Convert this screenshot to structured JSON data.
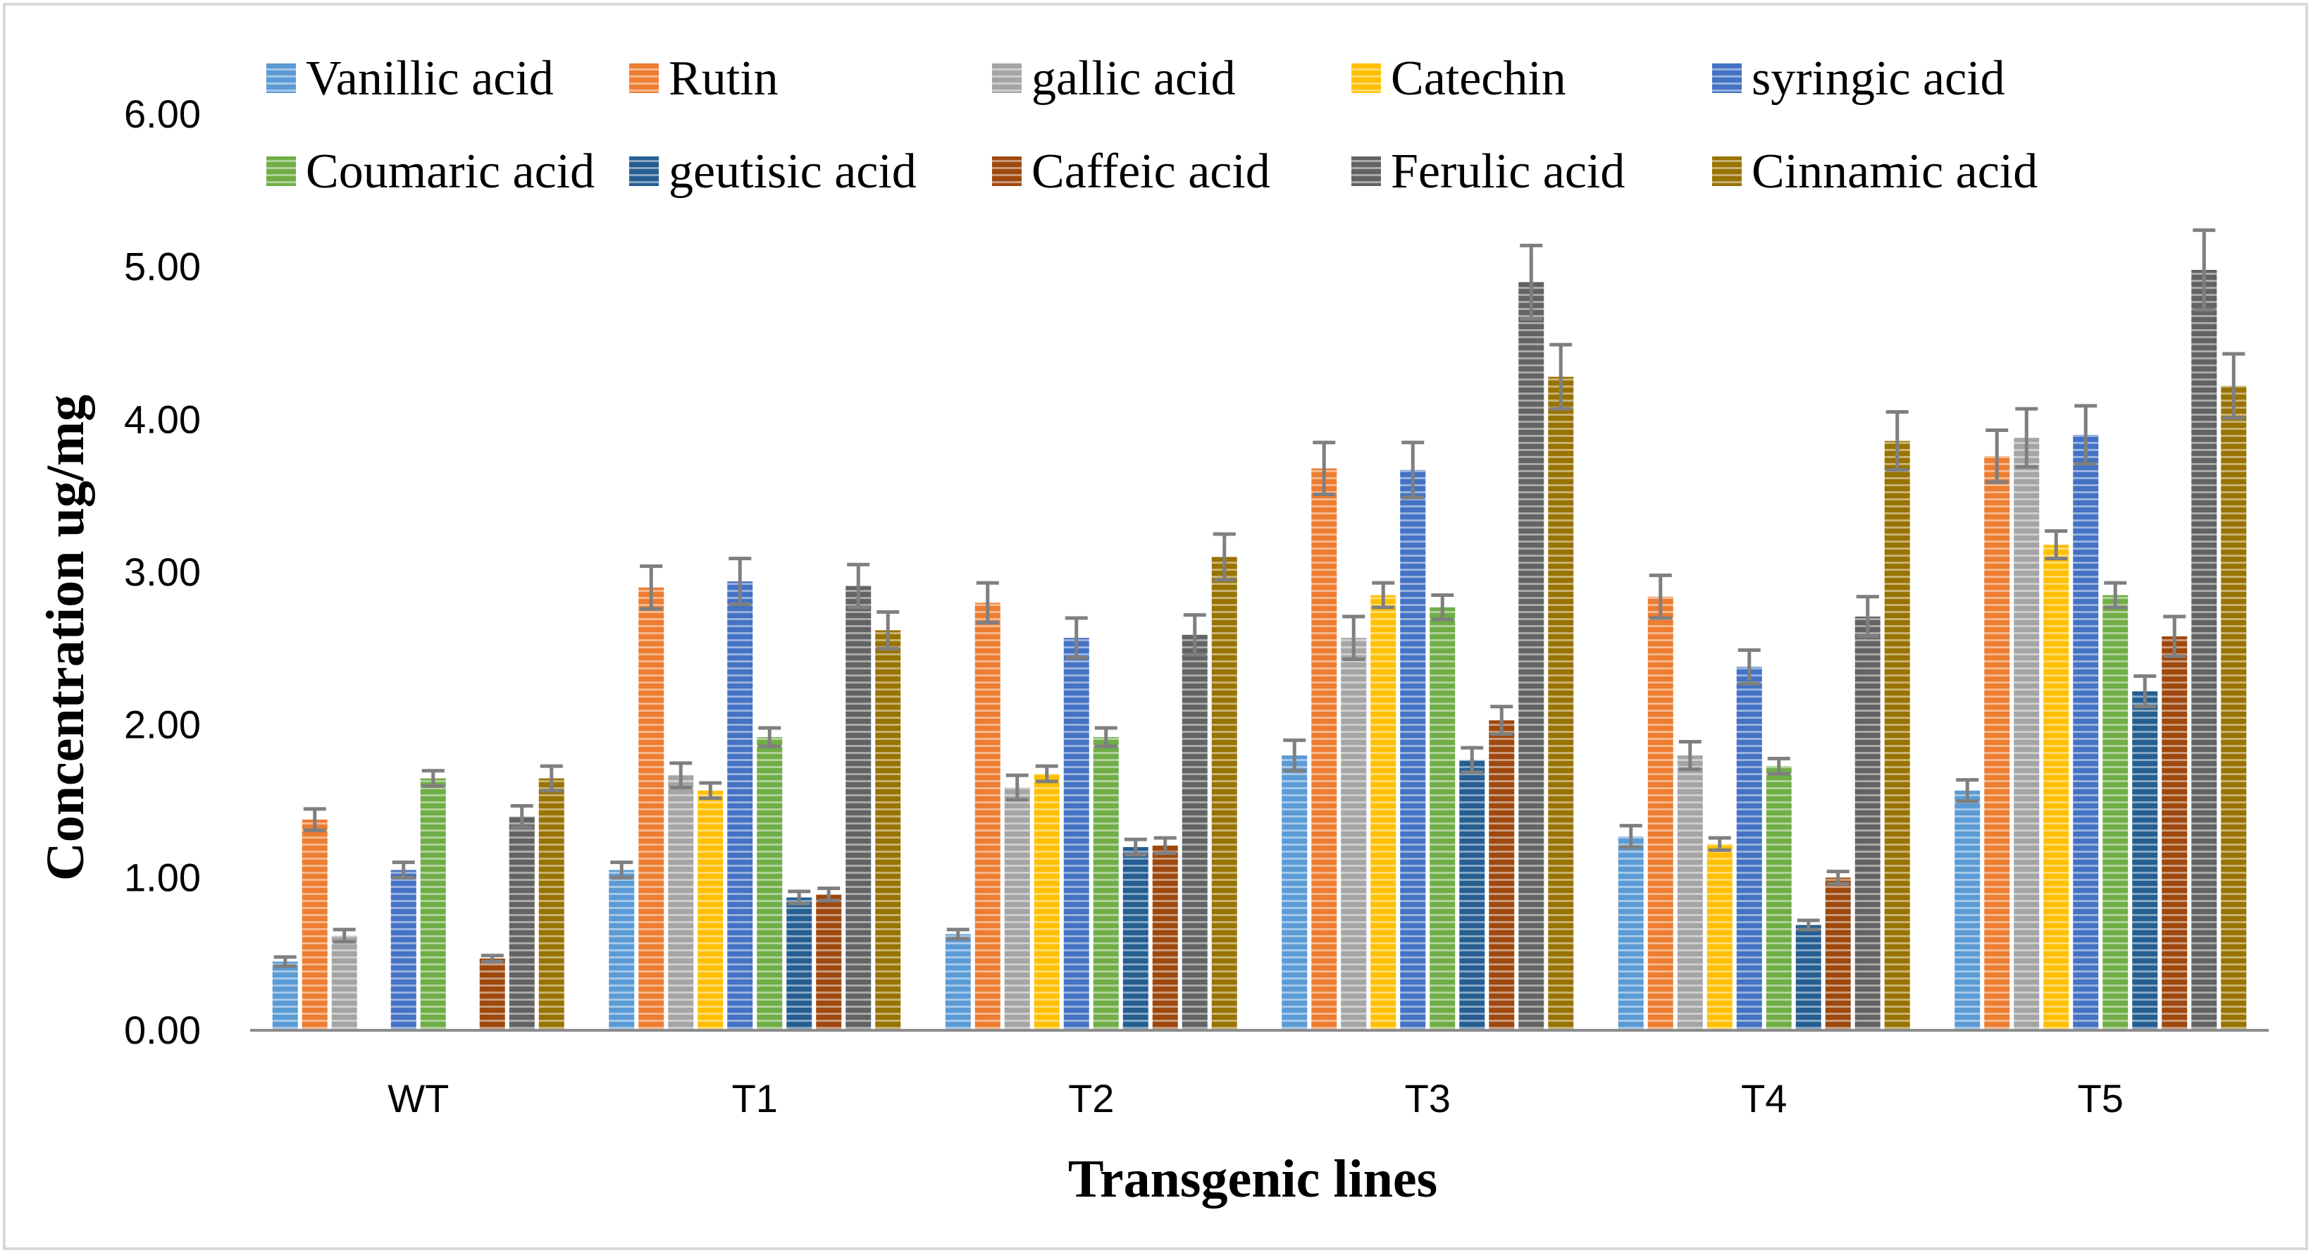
{
  "chart_data": {
    "type": "bar",
    "title": "",
    "xlabel": "Transgenic lines",
    "ylabel": "Concentration ug/mg",
    "ylim": [
      0,
      6
    ],
    "yticks": [
      "0.00",
      "1.00",
      "2.00",
      "3.00",
      "4.00",
      "5.00",
      "6.00"
    ],
    "ytick_values": [
      0,
      1,
      2,
      3,
      4,
      5,
      6
    ],
    "grid": false,
    "legend_position": "top",
    "categories": [
      "WT",
      "T1",
      "T2",
      "T3",
      "T4",
      "T5"
    ],
    "series": [
      {
        "name": "Vanillic acid",
        "color": "#5b9bd5",
        "values": [
          0.45,
          1.05,
          0.63,
          1.8,
          1.27,
          1.57
        ],
        "errors": [
          0.03,
          0.05,
          0.03,
          0.1,
          0.07,
          0.07
        ]
      },
      {
        "name": "Rutin",
        "color": "#ed7d31",
        "values": [
          1.38,
          2.9,
          2.8,
          3.68,
          2.84,
          3.76
        ],
        "errors": [
          0.07,
          0.14,
          0.13,
          0.17,
          0.14,
          0.17
        ]
      },
      {
        "name": "gallic acid",
        "color": "#a5a5a5",
        "values": [
          0.62,
          1.67,
          1.59,
          2.57,
          1.8,
          3.88
        ],
        "errors": [
          0.04,
          0.08,
          0.08,
          0.14,
          0.09,
          0.19
        ]
      },
      {
        "name": "Catechin",
        "color": "#ffc000",
        "values": [
          0,
          1.57,
          1.68,
          2.85,
          1.22,
          3.18
        ],
        "errors": [
          0,
          0.05,
          0.05,
          0.08,
          0.04,
          0.09
        ]
      },
      {
        "name": "syringic acid",
        "color": "#4472c4",
        "values": [
          1.05,
          2.94,
          2.57,
          3.67,
          2.38,
          3.9
        ],
        "errors": [
          0.05,
          0.15,
          0.13,
          0.18,
          0.11,
          0.19
        ]
      },
      {
        "name": "Coumaric acid",
        "color": "#70ad47",
        "values": [
          1.65,
          1.92,
          1.92,
          2.77,
          1.73,
          2.85
        ],
        "errors": [
          0.05,
          0.06,
          0.06,
          0.08,
          0.05,
          0.08
        ]
      },
      {
        "name": "geutisic acid",
        "color": "#255e91",
        "values": [
          0,
          0.87,
          1.2,
          1.77,
          0.69,
          2.22
        ],
        "errors": [
          0,
          0.04,
          0.05,
          0.08,
          0.03,
          0.1
        ]
      },
      {
        "name": "Caffeic acid",
        "color": "#9e480e",
        "values": [
          0.47,
          0.89,
          1.21,
          2.03,
          1.0,
          2.58
        ],
        "errors": [
          0.02,
          0.04,
          0.05,
          0.09,
          0.04,
          0.13
        ]
      },
      {
        "name": "Ferulic acid",
        "color": "#636363",
        "values": [
          1.4,
          2.91,
          2.59,
          4.9,
          2.71,
          4.98
        ],
        "errors": [
          0.07,
          0.14,
          0.13,
          0.24,
          0.13,
          0.26
        ]
      },
      {
        "name": "Cinnamic acid",
        "color": "#997300",
        "values": [
          1.65,
          2.62,
          3.1,
          4.28,
          3.86,
          4.22
        ],
        "errors": [
          0.08,
          0.12,
          0.15,
          0.21,
          0.19,
          0.21
        ]
      }
    ]
  }
}
